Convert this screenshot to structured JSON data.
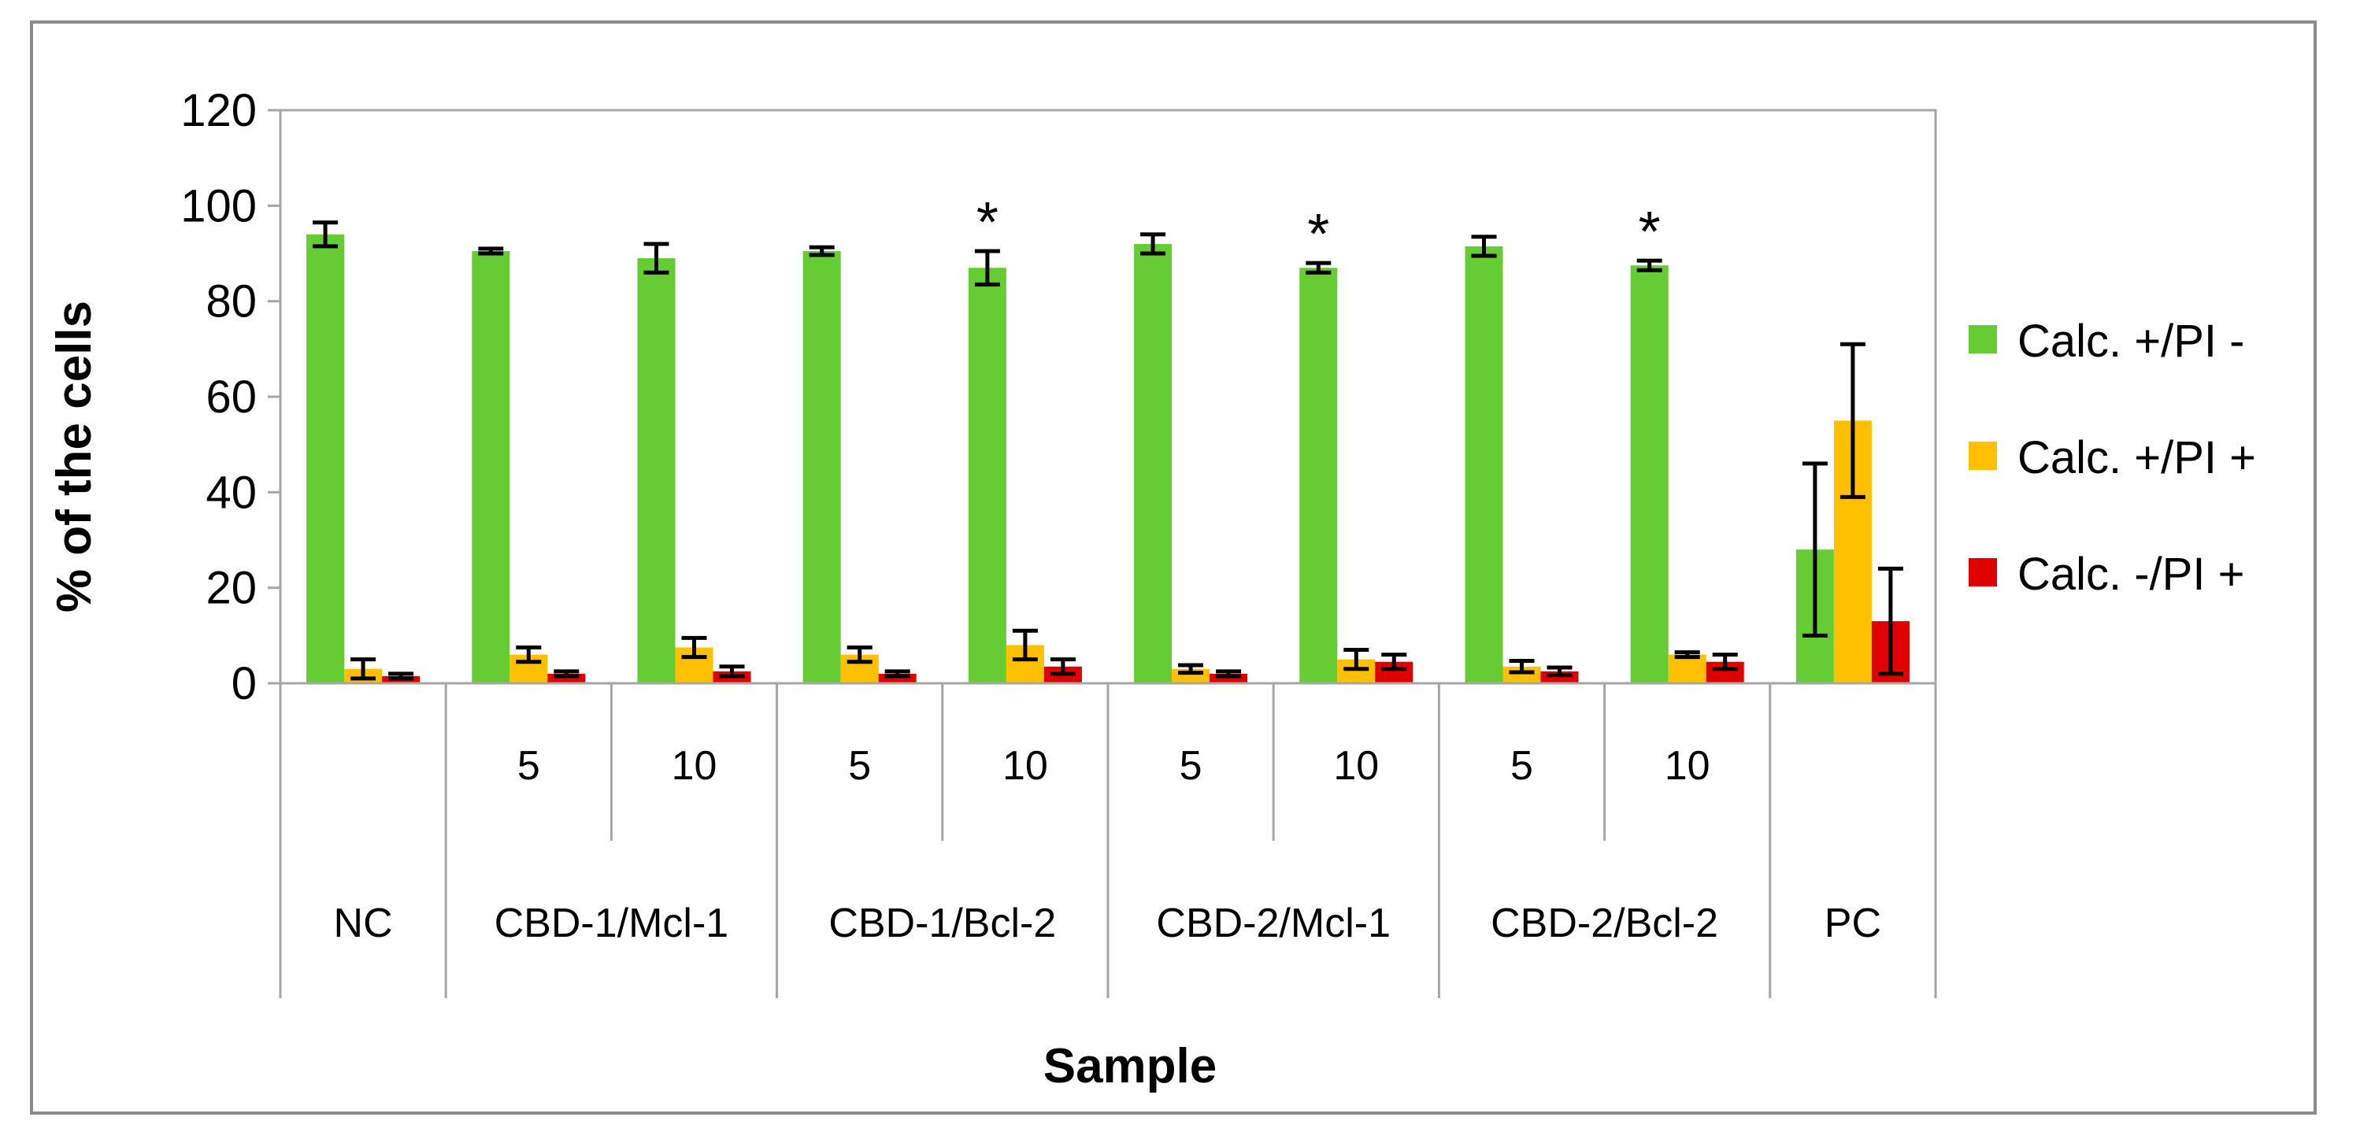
{
  "chart_data": {
    "type": "bar",
    "title": "",
    "xlabel": "Sample",
    "ylabel": "% of the cells",
    "ylim": [
      0,
      120
    ],
    "yticks": [
      0,
      20,
      40,
      60,
      80,
      100,
      120
    ],
    "grid": false,
    "legend_position": "right",
    "categories": [
      {
        "group": "NC",
        "sub": ""
      },
      {
        "group": "CBD-1/Mcl-1",
        "sub": "5"
      },
      {
        "group": "CBD-1/Mcl-1",
        "sub": "10"
      },
      {
        "group": "CBD-1/Bcl-2",
        "sub": "5"
      },
      {
        "group": "CBD-1/Bcl-2",
        "sub": "10"
      },
      {
        "group": "CBD-2/Mcl-1",
        "sub": "5"
      },
      {
        "group": "CBD-2/Mcl-1",
        "sub": "10"
      },
      {
        "group": "CBD-2/Bcl-2",
        "sub": "5"
      },
      {
        "group": "CBD-2/Bcl-2",
        "sub": "10"
      },
      {
        "group": "PC",
        "sub": ""
      }
    ],
    "groups": [
      {
        "label": "NC",
        "span": 1
      },
      {
        "label": "CBD-1/Mcl-1",
        "span": 2
      },
      {
        "label": "CBD-1/Bcl-2",
        "span": 2
      },
      {
        "label": "CBD-2/Mcl-1",
        "span": 2
      },
      {
        "label": "CBD-2/Bcl-2",
        "span": 2
      },
      {
        "label": "PC",
        "span": 1
      }
    ],
    "series": [
      {
        "name": "Calc. +/PI -",
        "color": "#66cc33",
        "values": [
          94,
          90.5,
          89,
          90.5,
          87,
          92,
          87,
          91.5,
          87.5,
          28
        ],
        "errors": [
          2.5,
          0.5,
          3,
          0.8,
          3.5,
          2,
          1,
          2,
          1,
          18
        ]
      },
      {
        "name": "Calc. +/PI +",
        "color": "#ffc000",
        "values": [
          3,
          6,
          7.5,
          6,
          8,
          3,
          5,
          3.5,
          6,
          55
        ],
        "errors": [
          2,
          1.5,
          2,
          1.5,
          3,
          0.8,
          2,
          1.2,
          0.5,
          16
        ]
      },
      {
        "name": "Calc. -/PI +",
        "color": "#e00000",
        "values": [
          1.5,
          2,
          2.5,
          2,
          3.5,
          2,
          4.5,
          2.5,
          4.5,
          13
        ],
        "errors": [
          0.5,
          0.5,
          1,
          0.5,
          1.5,
          0.5,
          1.5,
          0.8,
          1.5,
          11
        ]
      }
    ],
    "annotations": [
      {
        "category_index": 4,
        "text": "*"
      },
      {
        "category_index": 6,
        "text": "*"
      },
      {
        "category_index": 8,
        "text": "*"
      }
    ]
  }
}
